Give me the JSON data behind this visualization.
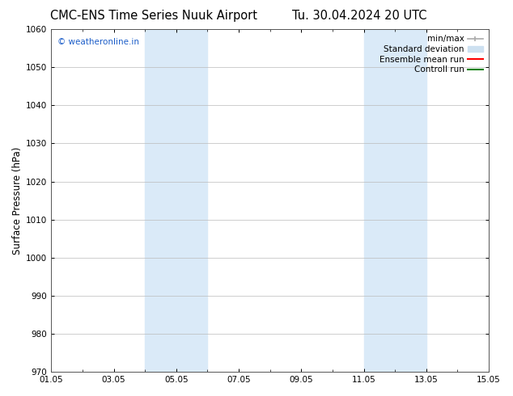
{
  "title_left": "CMC-ENS Time Series Nuuk Airport",
  "title_right": "Tu. 30.04.2024 20 UTC",
  "ylabel": "Surface Pressure (hPa)",
  "xlabel_ticks": [
    "01.05",
    "03.05",
    "05.05",
    "07.05",
    "09.05",
    "11.05",
    "13.05",
    "15.05"
  ],
  "xtick_positions": [
    0,
    2,
    4,
    6,
    8,
    10,
    12,
    14
  ],
  "xlim": [
    0,
    14
  ],
  "ylim": [
    970,
    1060
  ],
  "yticks": [
    970,
    980,
    990,
    1000,
    1010,
    1020,
    1030,
    1040,
    1050,
    1060
  ],
  "shaded_bands": [
    {
      "x_start": 3.0,
      "x_end": 5.0
    },
    {
      "x_start": 10.0,
      "x_end": 12.0
    }
  ],
  "shade_color": "#daeaf8",
  "watermark_text": "© weatheronline.in",
  "watermark_color": "#1a5cc8",
  "legend_labels": [
    "min/max",
    "Standard deviation",
    "Ensemble mean run",
    "Controll run"
  ],
  "legend_colors": [
    "#aaaaaa",
    "#cde0f0",
    "red",
    "green"
  ],
  "bg_color": "#ffffff",
  "plot_bg_color": "#ffffff",
  "grid_color": "#bbbbbb",
  "title_fontsize": 10.5,
  "tick_label_fontsize": 7.5,
  "ylabel_fontsize": 8.5,
  "legend_fontsize": 7.5
}
